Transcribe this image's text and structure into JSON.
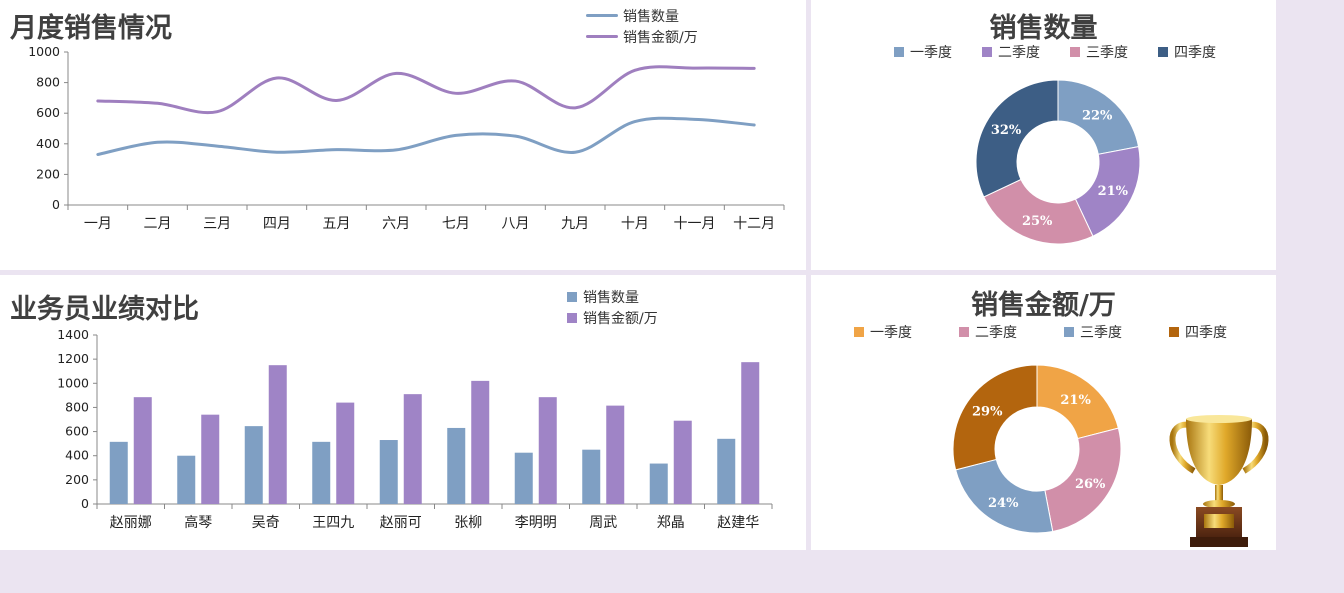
{
  "panels": {
    "monthly": {
      "title": "月度销售情况"
    },
    "qty_donut": {
      "title": "销售数量"
    },
    "staff": {
      "title": "业务员业绩对比"
    },
    "amount_donut": {
      "title": "销售金额/万"
    }
  },
  "chart_data": [
    {
      "id": "monthly",
      "type": "line",
      "title": "月度销售情况",
      "categories": [
        "一月",
        "二月",
        "三月",
        "四月",
        "五月",
        "六月",
        "七月",
        "八月",
        "九月",
        "十月",
        "十一月",
        "十二月"
      ],
      "series": [
        {
          "name": "销售数量",
          "color": "#7f9fc3",
          "values": [
            330,
            410,
            385,
            345,
            362,
            360,
            455,
            450,
            345,
            545,
            560,
            523
          ]
        },
        {
          "name": "销售金额/万",
          "color": "#9f7fbf",
          "values": [
            680,
            665,
            610,
            830,
            683,
            860,
            730,
            810,
            635,
            880,
            895,
            893
          ]
        }
      ],
      "ylim": [
        0,
        1000
      ],
      "yticks": [
        0,
        200,
        400,
        600,
        800,
        1000
      ],
      "legend": "top-right",
      "smooth": true
    },
    {
      "id": "qty_donut",
      "type": "pie",
      "title": "销售数量",
      "donut": true,
      "labels": [
        "一季度",
        "二季度",
        "三季度",
        "四季度"
      ],
      "values": [
        22,
        21,
        25,
        32
      ],
      "value_labels": [
        "22%",
        "21%",
        "25%",
        "32%"
      ],
      "colors": [
        "#7f9fc3",
        "#9f84c6",
        "#d18fa9",
        "#3d5e85"
      ],
      "legend": "top"
    },
    {
      "id": "staff",
      "type": "bar",
      "title": "业务员业绩对比",
      "categories": [
        "赵丽娜",
        "高琴",
        "吴奇",
        "王四九",
        "赵丽可",
        "张柳",
        "李明明",
        "周武",
        "郑晶",
        "赵建华"
      ],
      "series": [
        {
          "name": "销售数量",
          "color": "#7f9fc3",
          "values": [
            515,
            400,
            645,
            515,
            530,
            630,
            425,
            450,
            335,
            540
          ]
        },
        {
          "name": "销售金额/万",
          "color": "#9f84c6",
          "values": [
            885,
            740,
            1150,
            840,
            910,
            1020,
            885,
            815,
            690,
            1175
          ]
        }
      ],
      "ylim": [
        0,
        1400
      ],
      "yticks": [
        0,
        200,
        400,
        600,
        800,
        1000,
        1200,
        1400
      ],
      "legend": "top-right"
    },
    {
      "id": "amount_donut",
      "type": "pie",
      "title": "销售金额/万",
      "donut": true,
      "labels": [
        "一季度",
        "二季度",
        "三季度",
        "四季度"
      ],
      "values": [
        21,
        26,
        24,
        29
      ],
      "value_labels": [
        "21%",
        "26%",
        "24%",
        "29%"
      ],
      "colors": [
        "#f0a446",
        "#d18fa9",
        "#7f9fc3",
        "#b3650e"
      ],
      "legend": "top"
    }
  ],
  "decor": {
    "trophy": "trophy-icon"
  }
}
